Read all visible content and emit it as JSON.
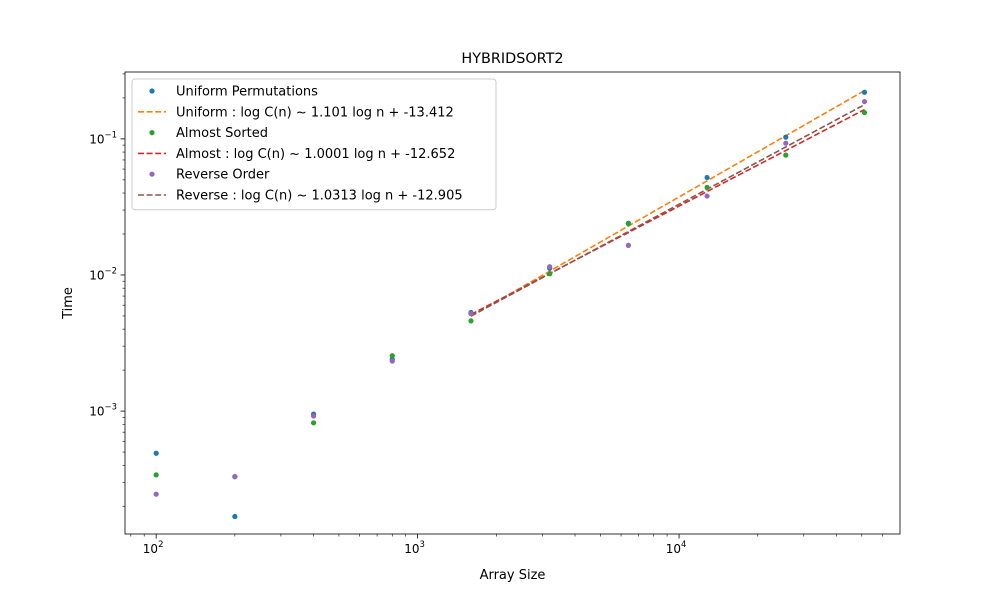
{
  "chart_data": {
    "type": "scatter",
    "title": "HYBRIDSORT2",
    "xlabel": "Array Size",
    "ylabel": "Time",
    "xscale": "log",
    "yscale": "log",
    "xlim": [
      76,
      70000
    ],
    "ylim": [
      0.000125,
      0.31
    ],
    "grid": false,
    "legend_position": "top-left",
    "x_ticks": [
      {
        "value": 100,
        "base": "10",
        "exp": "2"
      },
      {
        "value": 1000,
        "base": "10",
        "exp": "3"
      },
      {
        "value": 10000,
        "base": "10",
        "exp": "4"
      }
    ],
    "y_ticks": [
      {
        "value": 0.001,
        "base": "10",
        "exp": "−3"
      },
      {
        "value": 0.01,
        "base": "10",
        "exp": "−2"
      },
      {
        "value": 0.1,
        "base": "10",
        "exp": "−1"
      }
    ],
    "series": [
      {
        "name": "Uniform Permutations",
        "kind": "points",
        "color": "#1f77b4",
        "x": [
          100,
          200,
          400,
          800,
          1600,
          3200,
          6400,
          12800,
          25600,
          51200
        ],
        "y": [
          0.00049,
          0.000168,
          0.00095,
          0.0024,
          0.0053,
          0.0112,
          0.024,
          0.052,
          0.103,
          0.22
        ]
      },
      {
        "name": "Uniform : log C(n) ~  1.101 log n + -13.412",
        "kind": "line",
        "color": "#ff7f0e",
        "x": [
          1600,
          51200
        ],
        "y": [
          0.00497,
          0.2264
        ]
      },
      {
        "name": "Almost Sorted",
        "kind": "points",
        "color": "#2ca02c",
        "x": [
          100,
          200,
          400,
          800,
          1600,
          3200,
          6400,
          12800,
          25600,
          51200
        ],
        "y": [
          0.00034,
          0.00033,
          0.00082,
          0.00255,
          0.0046,
          0.0102,
          0.0238,
          0.044,
          0.076,
          0.156
        ]
      },
      {
        "name": "Almost : log C(n) ~  1.0001 log n + -12.652",
        "kind": "line",
        "color": "#d62728",
        "x": [
          1600,
          51200
        ],
        "y": [
          0.00513,
          0.1643
        ]
      },
      {
        "name": "Reverse Order",
        "kind": "points",
        "color": "#9467bd",
        "x": [
          100,
          200,
          400,
          800,
          1600,
          3200,
          6400,
          12800,
          25600,
          51200
        ],
        "y": [
          0.000245,
          0.00033,
          0.00092,
          0.00233,
          0.0052,
          0.0115,
          0.0165,
          0.038,
          0.093,
          0.188
        ]
      },
      {
        "name": "Reverse : log C(n) ~  1.0313 log n + -12.905",
        "kind": "line",
        "color": "#8c564b",
        "x": [
          1600,
          51200
        ],
        "y": [
          0.00499,
          0.1784
        ]
      }
    ]
  }
}
